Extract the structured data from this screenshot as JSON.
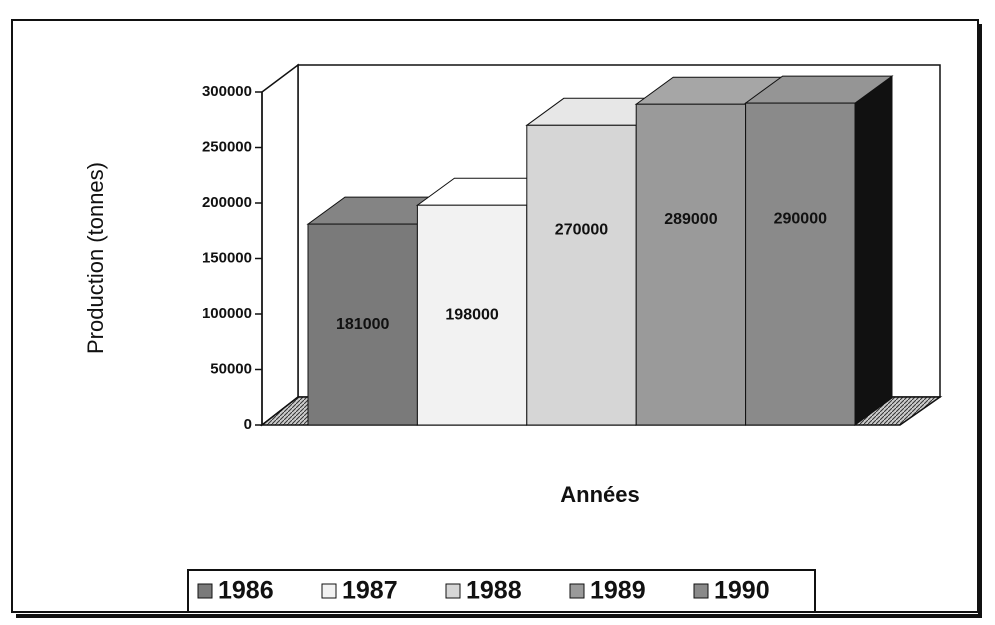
{
  "chart_data": {
    "type": "bar3d",
    "y_label": "Production (tonnes)",
    "x_label": "Années",
    "ylim": [
      0,
      300000
    ],
    "yticks": [
      0,
      50000,
      100000,
      150000,
      200000,
      250000,
      300000
    ],
    "series": [
      {
        "name": "1986",
        "color": "#7a7a7a",
        "values": [
          181000
        ]
      },
      {
        "name": "1987",
        "color": "#f2f2f2",
        "values": [
          198000
        ]
      },
      {
        "name": "1988",
        "color": "#d6d6d6",
        "values": [
          270000
        ]
      },
      {
        "name": "1989",
        "color": "#9a9a9a",
        "values": [
          289000
        ]
      },
      {
        "name": "1990",
        "color": "#8a8a8a",
        "values": [
          290000
        ]
      }
    ]
  }
}
